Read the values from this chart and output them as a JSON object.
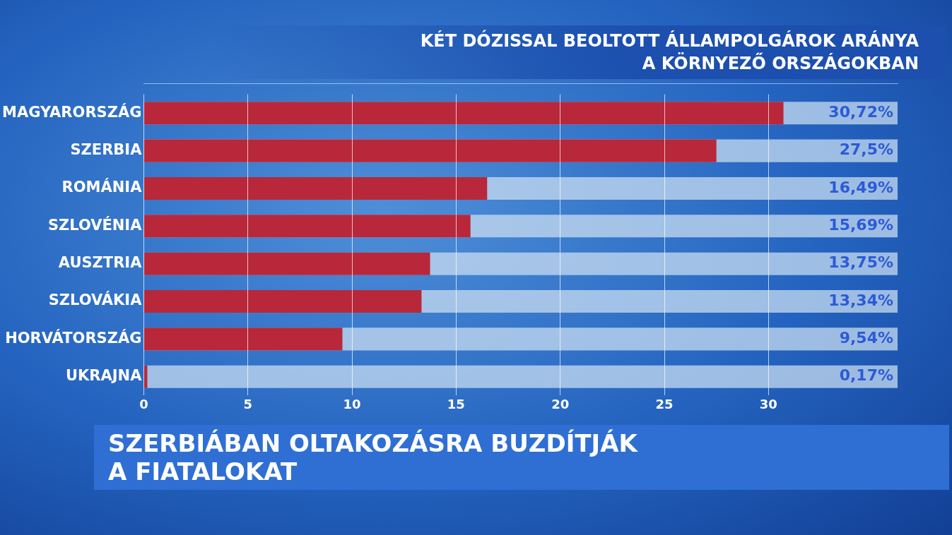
{
  "chart_data": {
    "type": "bar",
    "orientation": "horizontal",
    "title": "KÉT DÓZISSAL BEOLTOTT ÁLLAMPOLGÁROK ARÁNYA\nA KÖRNYEZŐ ORSZÁGOKBAN",
    "categories": [
      "MAGYARORSZÁG",
      "SZERBIA",
      "ROMÁNIA",
      "SZLOVÉNIA",
      "AUSZTRIA",
      "SZLOVÁKIA",
      "HORVÁTORSZÁG",
      "UKRAJNA"
    ],
    "values": [
      30.72,
      27.5,
      16.49,
      15.69,
      13.75,
      13.34,
      9.54,
      0.17
    ],
    "value_labels": [
      "30,72%",
      "27,5%",
      "16,49%",
      "15,69%",
      "13,75%",
      "13,34%",
      "9,54%",
      "0,17%"
    ],
    "color": "#b8283a",
    "xlim": [
      0,
      36.2
    ],
    "xticks": [
      0,
      5,
      10,
      15,
      20,
      25,
      30
    ],
    "grid": "x",
    "annotations": [
      "SZERBIÁBAN OLTAKOZÁSRA BUZDÍTJÁK\nA FIATALOKAT"
    ]
  }
}
